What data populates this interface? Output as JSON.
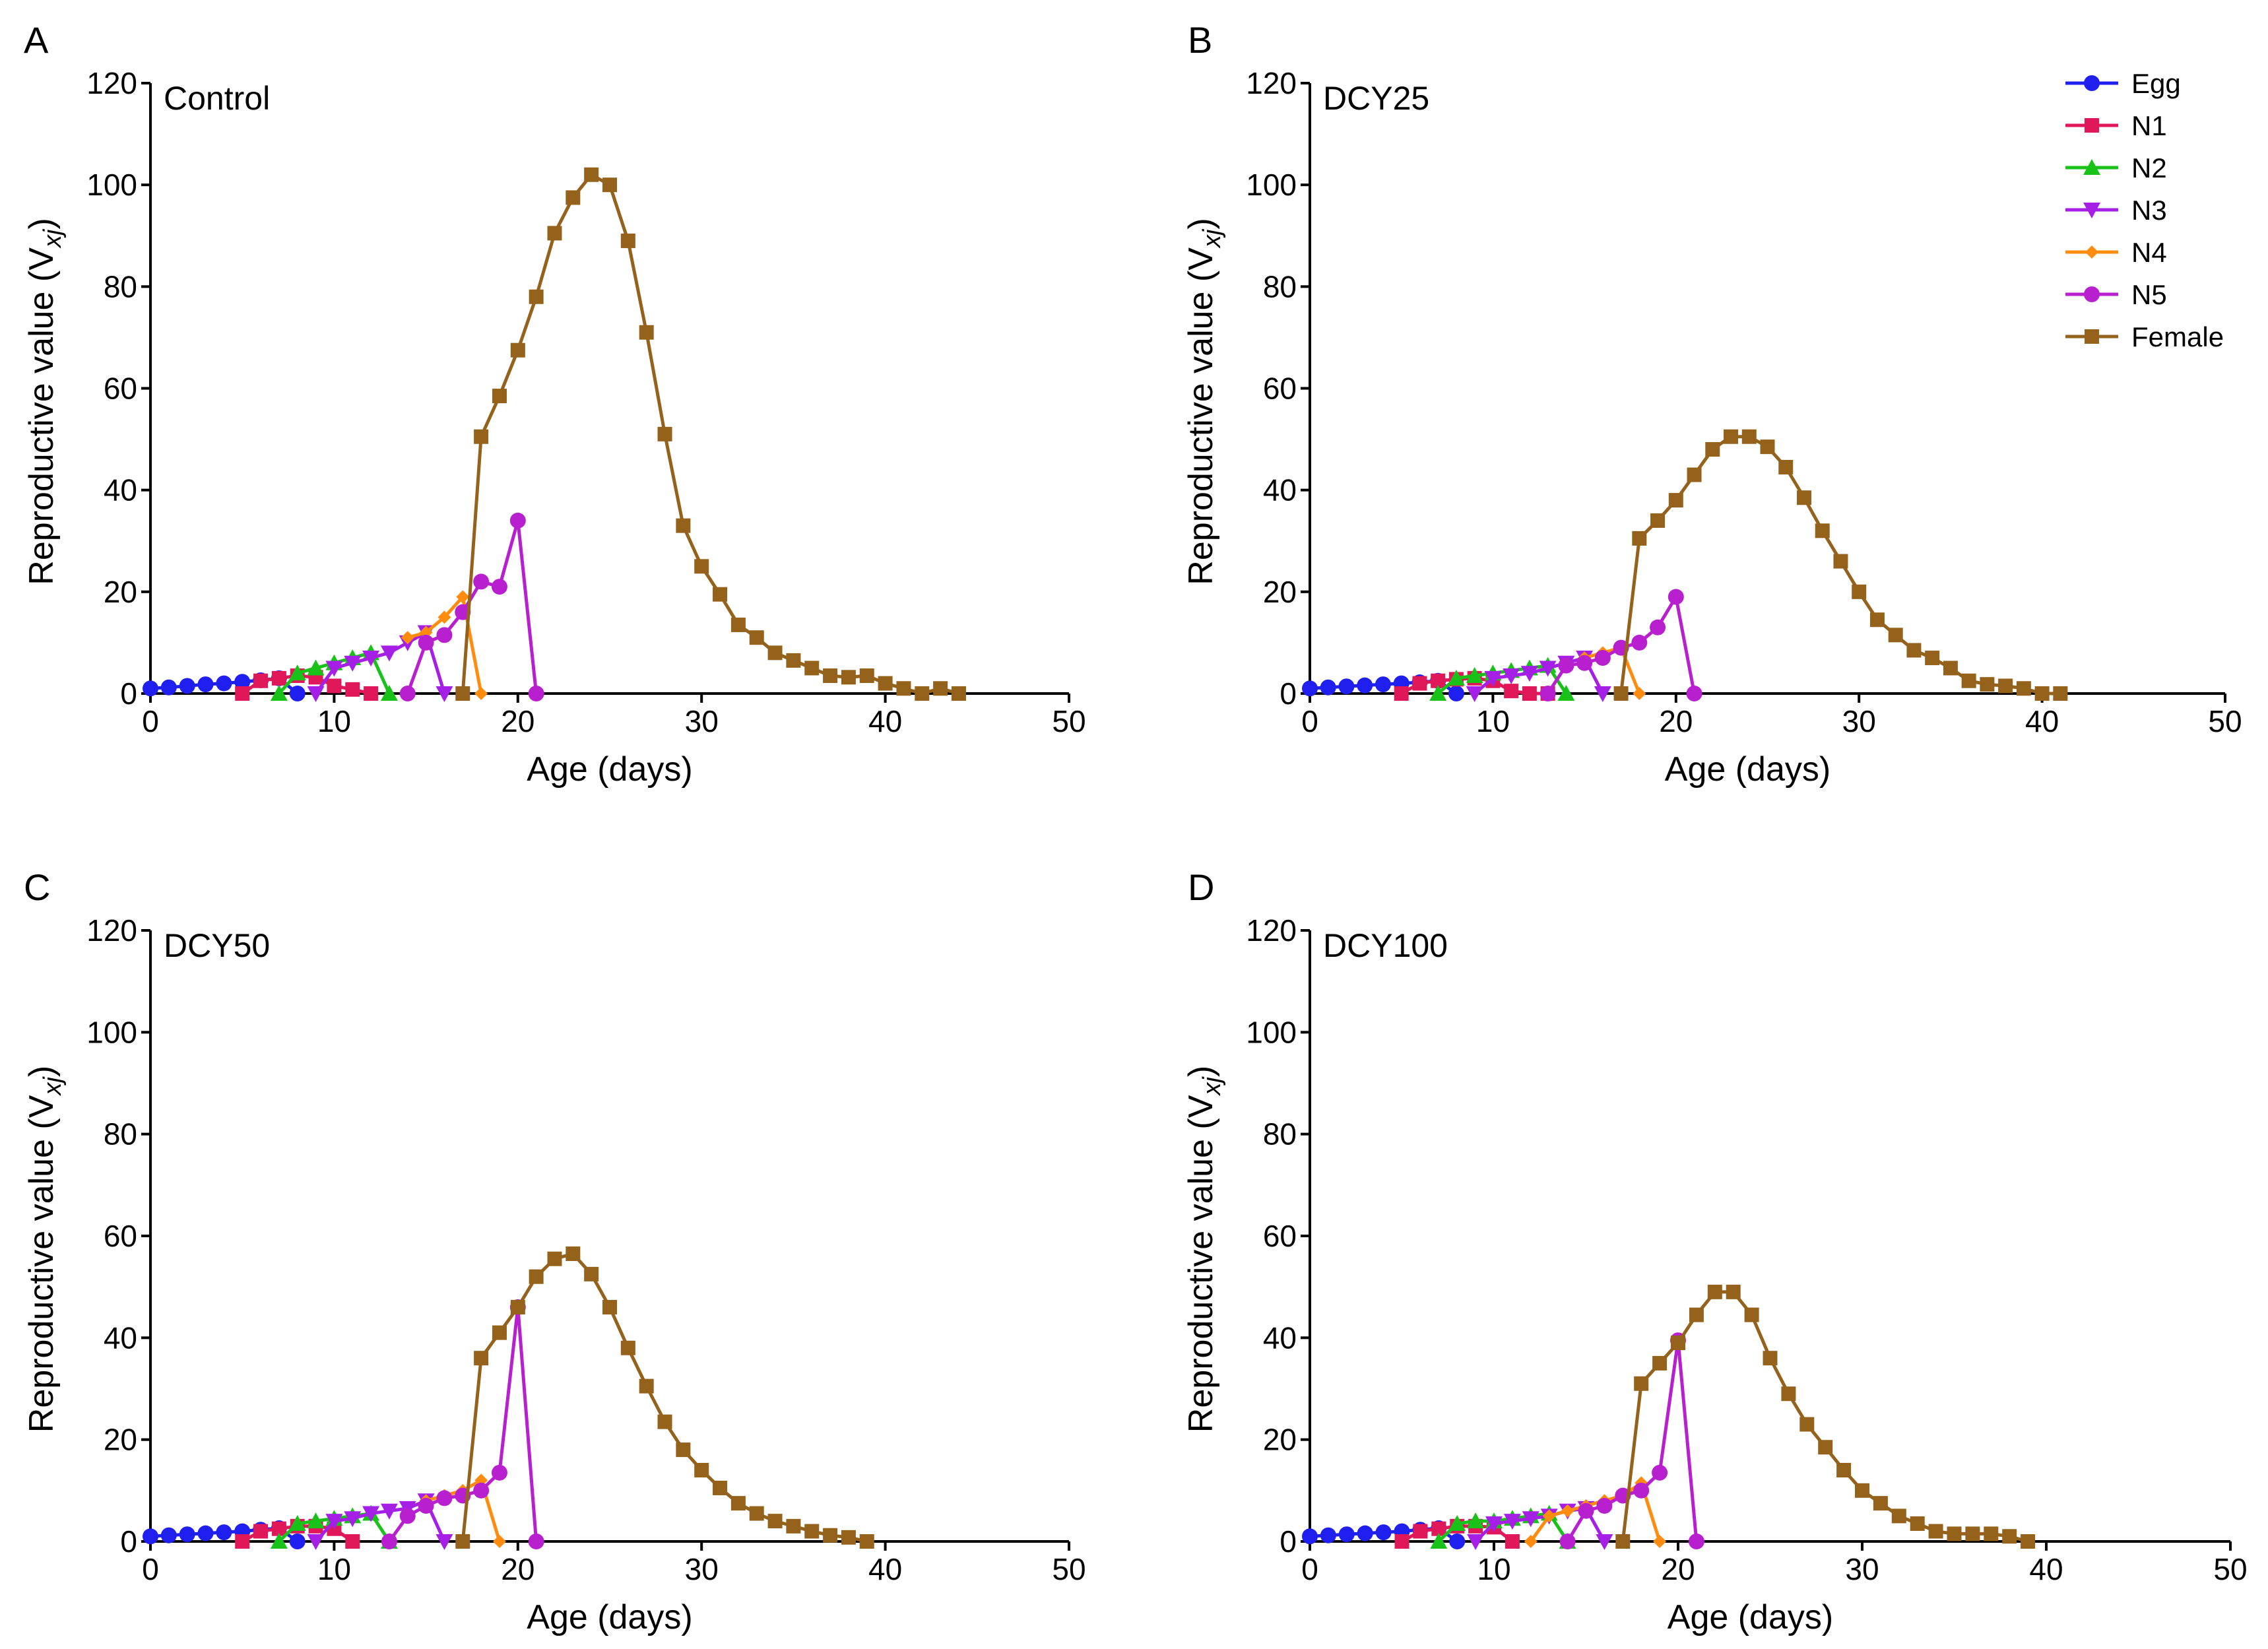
{
  "colors": {
    "Egg": "#1f1ff0",
    "N1": "#e0185a",
    "N2": "#19c219",
    "N3": "#a51fe6",
    "N4": "#ff8c0f",
    "N5": "#b81fcf",
    "Female": "#95621c"
  },
  "markers": {
    "Egg": "circle",
    "N1": "square",
    "N2": "triangle-up",
    "N3": "triangle-down",
    "N4": "diamond",
    "N5": "circle",
    "Female": "square"
  },
  "legend": {
    "entries": [
      "Egg",
      "N1",
      "N2",
      "N3",
      "N4",
      "N5",
      "Female"
    ]
  },
  "chart_data": [
    {
      "type": "line",
      "panel": "A",
      "title": "Control",
      "xlabel": "Age (days)",
      "ylabel_main": "Reproductive value (V",
      "ylabel_sub": "xj",
      "ylabel_close": ")",
      "xlim": [
        0,
        50
      ],
      "ylim": [
        0,
        120
      ],
      "xticks": [
        0,
        10,
        20,
        30,
        40,
        50
      ],
      "yticks": [
        0,
        20,
        40,
        60,
        80,
        100,
        120
      ],
      "series": [
        {
          "name": "Egg",
          "x": [
            0,
            1,
            2,
            3,
            4,
            5,
            6,
            7,
            8
          ],
          "y": [
            1.0,
            1.2,
            1.5,
            1.8,
            2.0,
            2.3,
            2.6,
            3.0,
            0
          ]
        },
        {
          "name": "N1",
          "x": [
            5,
            6,
            7,
            8,
            9,
            10,
            11,
            12
          ],
          "y": [
            0,
            2.5,
            3.0,
            3.5,
            3.2,
            1.5,
            0.8,
            0
          ]
        },
        {
          "name": "N2",
          "x": [
            7,
            8,
            9,
            10,
            11,
            12,
            13
          ],
          "y": [
            0,
            4,
            5,
            6,
            7,
            8,
            0
          ]
        },
        {
          "name": "N3",
          "x": [
            9,
            10,
            11,
            12,
            13,
            14,
            15,
            16
          ],
          "y": [
            0,
            5,
            6,
            7,
            8,
            10,
            12,
            0
          ]
        },
        {
          "name": "N4",
          "x": [
            14,
            15,
            16,
            17,
            18
          ],
          "y": [
            11,
            12,
            15,
            19,
            0
          ]
        },
        {
          "name": "N5",
          "x": [
            14,
            15,
            16,
            17,
            18,
            19,
            20,
            21
          ],
          "y": [
            0,
            10,
            11.5,
            16,
            22,
            21,
            34,
            0
          ]
        },
        {
          "name": "Female",
          "x": [
            17,
            18,
            19,
            20,
            21,
            22,
            23,
            24,
            25,
            26,
            27,
            28,
            29,
            30,
            31,
            32,
            33,
            34,
            35,
            36,
            37,
            38,
            39,
            40,
            41,
            42,
            43,
            44
          ],
          "y": [
            0,
            50.5,
            58.5,
            67.5,
            78,
            90.5,
            97.5,
            102,
            100,
            89,
            71,
            51,
            33,
            25,
            19.5,
            13.5,
            11,
            8,
            6.5,
            5,
            3.5,
            3.2,
            3.5,
            2,
            1,
            0,
            1,
            0
          ]
        }
      ]
    },
    {
      "type": "line",
      "panel": "B",
      "title": "DCY25",
      "xlabel": "Age (days)",
      "ylabel_main": "Reproductive value (V",
      "ylabel_sub": "xj",
      "ylabel_close": ")",
      "xlim": [
        0,
        50
      ],
      "ylim": [
        0,
        120
      ],
      "xticks": [
        0,
        10,
        20,
        30,
        40,
        50
      ],
      "yticks": [
        0,
        20,
        40,
        60,
        80,
        100,
        120
      ],
      "series": [
        {
          "name": "Egg",
          "x": [
            0,
            1,
            2,
            3,
            4,
            5,
            6,
            7,
            8
          ],
          "y": [
            1.0,
            1.2,
            1.4,
            1.6,
            1.8,
            2.0,
            2.2,
            2.5,
            0
          ]
        },
        {
          "name": "N1",
          "x": [
            5,
            6,
            7,
            8,
            9,
            10,
            11,
            12,
            13
          ],
          "y": [
            0,
            2.0,
            2.5,
            2.8,
            3.0,
            2.5,
            0.5,
            0,
            0
          ]
        },
        {
          "name": "N2",
          "x": [
            7,
            8,
            9,
            10,
            11,
            12,
            13,
            14
          ],
          "y": [
            0,
            3.0,
            3.5,
            4.0,
            4.5,
            5.0,
            5.5,
            0
          ]
        },
        {
          "name": "N3",
          "x": [
            9,
            10,
            11,
            12,
            13,
            14,
            15,
            16
          ],
          "y": [
            0,
            3.0,
            3.5,
            4.0,
            5.0,
            6.0,
            7.0,
            0
          ]
        },
        {
          "name": "N4",
          "x": [
            15,
            16,
            17,
            18
          ],
          "y": [
            7,
            8,
            9,
            0
          ]
        },
        {
          "name": "N5",
          "x": [
            13,
            14,
            15,
            16,
            17,
            18,
            19,
            20,
            21
          ],
          "y": [
            0,
            5.5,
            6,
            7,
            9,
            10,
            13,
            19,
            0
          ]
        },
        {
          "name": "Female",
          "x": [
            17,
            18,
            19,
            20,
            21,
            22,
            23,
            24,
            25,
            26,
            27,
            28,
            29,
            30,
            31,
            32,
            33,
            34,
            35,
            36,
            37,
            38,
            39,
            40,
            41
          ],
          "y": [
            0,
            30.5,
            34,
            38,
            43,
            48,
            50.5,
            50.5,
            48.5,
            44.5,
            38.5,
            32,
            26,
            20,
            14.5,
            11.5,
            8.5,
            7,
            5,
            2.5,
            1.8,
            1.5,
            1,
            0,
            0
          ]
        }
      ]
    },
    {
      "type": "line",
      "panel": "C",
      "title": "DCY50",
      "xlabel": "Age (days)",
      "ylabel_main": "Reproductive value (V",
      "ylabel_sub": "xj",
      "ylabel_close": ")",
      "xlim": [
        0,
        50
      ],
      "ylim": [
        0,
        120
      ],
      "xticks": [
        0,
        10,
        20,
        30,
        40,
        50
      ],
      "yticks": [
        0,
        20,
        40,
        60,
        80,
        100,
        120
      ],
      "series": [
        {
          "name": "Egg",
          "x": [
            0,
            1,
            2,
            3,
            4,
            5,
            6,
            7,
            8
          ],
          "y": [
            1.0,
            1.2,
            1.4,
            1.6,
            1.8,
            2.0,
            2.3,
            2.6,
            0
          ]
        },
        {
          "name": "N1",
          "x": [
            5,
            6,
            7,
            8,
            9,
            10,
            11
          ],
          "y": [
            0,
            2.0,
            2.5,
            3.0,
            3.0,
            2.5,
            0
          ]
        },
        {
          "name": "N2",
          "x": [
            7,
            8,
            9,
            10,
            11,
            12,
            13
          ],
          "y": [
            0,
            3.5,
            4,
            4.5,
            5,
            5.5,
            0
          ]
        },
        {
          "name": "N3",
          "x": [
            9,
            10,
            11,
            12,
            13,
            14,
            15,
            16
          ],
          "y": [
            0,
            4,
            4.5,
            5.5,
            6,
            6.5,
            8,
            0
          ]
        },
        {
          "name": "N4",
          "x": [
            15,
            16,
            17,
            18,
            19
          ],
          "y": [
            8,
            9,
            10,
            12,
            0
          ]
        },
        {
          "name": "N5",
          "x": [
            13,
            14,
            15,
            16,
            17,
            18,
            19,
            20,
            21
          ],
          "y": [
            0,
            5,
            7,
            8.5,
            9,
            10,
            13.5,
            46,
            0
          ]
        },
        {
          "name": "Female",
          "x": [
            17,
            18,
            19,
            20,
            21,
            22,
            23,
            24,
            25,
            26,
            27,
            28,
            29,
            30,
            31,
            32,
            33,
            34,
            35,
            36,
            37,
            38,
            39
          ],
          "y": [
            0,
            36,
            41,
            46,
            52,
            55.5,
            56.5,
            52.5,
            46,
            38,
            30.5,
            23.5,
            18,
            14,
            10.5,
            7.5,
            5.5,
            4,
            3,
            2,
            1.2,
            0.8,
            0
          ]
        }
      ]
    },
    {
      "type": "line",
      "panel": "D",
      "title": "DCY100",
      "xlabel": "Age (days)",
      "ylabel_main": "Reproductive value (V",
      "ylabel_sub": "xj",
      "ylabel_close": ")",
      "xlim": [
        0,
        50
      ],
      "ylim": [
        0,
        120
      ],
      "xticks": [
        0,
        10,
        20,
        30,
        40,
        50
      ],
      "yticks": [
        0,
        20,
        40,
        60,
        80,
        100,
        120
      ],
      "series": [
        {
          "name": "Egg",
          "x": [
            0,
            1,
            2,
            3,
            4,
            5,
            6,
            7,
            8
          ],
          "y": [
            1.0,
            1.2,
            1.4,
            1.6,
            1.8,
            2.0,
            2.3,
            2.6,
            0
          ]
        },
        {
          "name": "N1",
          "x": [
            5,
            6,
            7,
            8,
            9,
            10,
            11
          ],
          "y": [
            0,
            2.0,
            2.5,
            3.0,
            3.0,
            2.8,
            0
          ]
        },
        {
          "name": "N2",
          "x": [
            7,
            8,
            9,
            10,
            11,
            12,
            13,
            14
          ],
          "y": [
            0,
            3.5,
            4,
            4,
            4.5,
            5,
            5.5,
            0
          ]
        },
        {
          "name": "N3",
          "x": [
            9,
            10,
            11,
            12,
            13,
            14,
            15,
            16
          ],
          "y": [
            0,
            3.5,
            4,
            4.5,
            5,
            6,
            6.5,
            0
          ]
        },
        {
          "name": "N4",
          "x": [
            12,
            13,
            14,
            15,
            16,
            17,
            18,
            19
          ],
          "y": [
            0,
            5,
            6,
            7,
            8,
            9,
            11.5,
            0
          ]
        },
        {
          "name": "N5",
          "x": [
            14,
            15,
            16,
            17,
            18,
            19,
            20,
            21
          ],
          "y": [
            0,
            6,
            7,
            9,
            10,
            13.5,
            39.5,
            0
          ]
        },
        {
          "name": "Female",
          "x": [
            17,
            18,
            19,
            20,
            21,
            22,
            23,
            24,
            25,
            26,
            27,
            28,
            29,
            30,
            31,
            32,
            33,
            34,
            35,
            36,
            37,
            38,
            39
          ],
          "y": [
            0,
            31,
            35,
            39,
            44.5,
            49,
            49,
            44.5,
            36,
            29,
            23,
            18.5,
            14,
            10,
            7.5,
            5,
            3.5,
            2,
            1.5,
            1.5,
            1.5,
            1,
            0
          ]
        }
      ]
    }
  ]
}
